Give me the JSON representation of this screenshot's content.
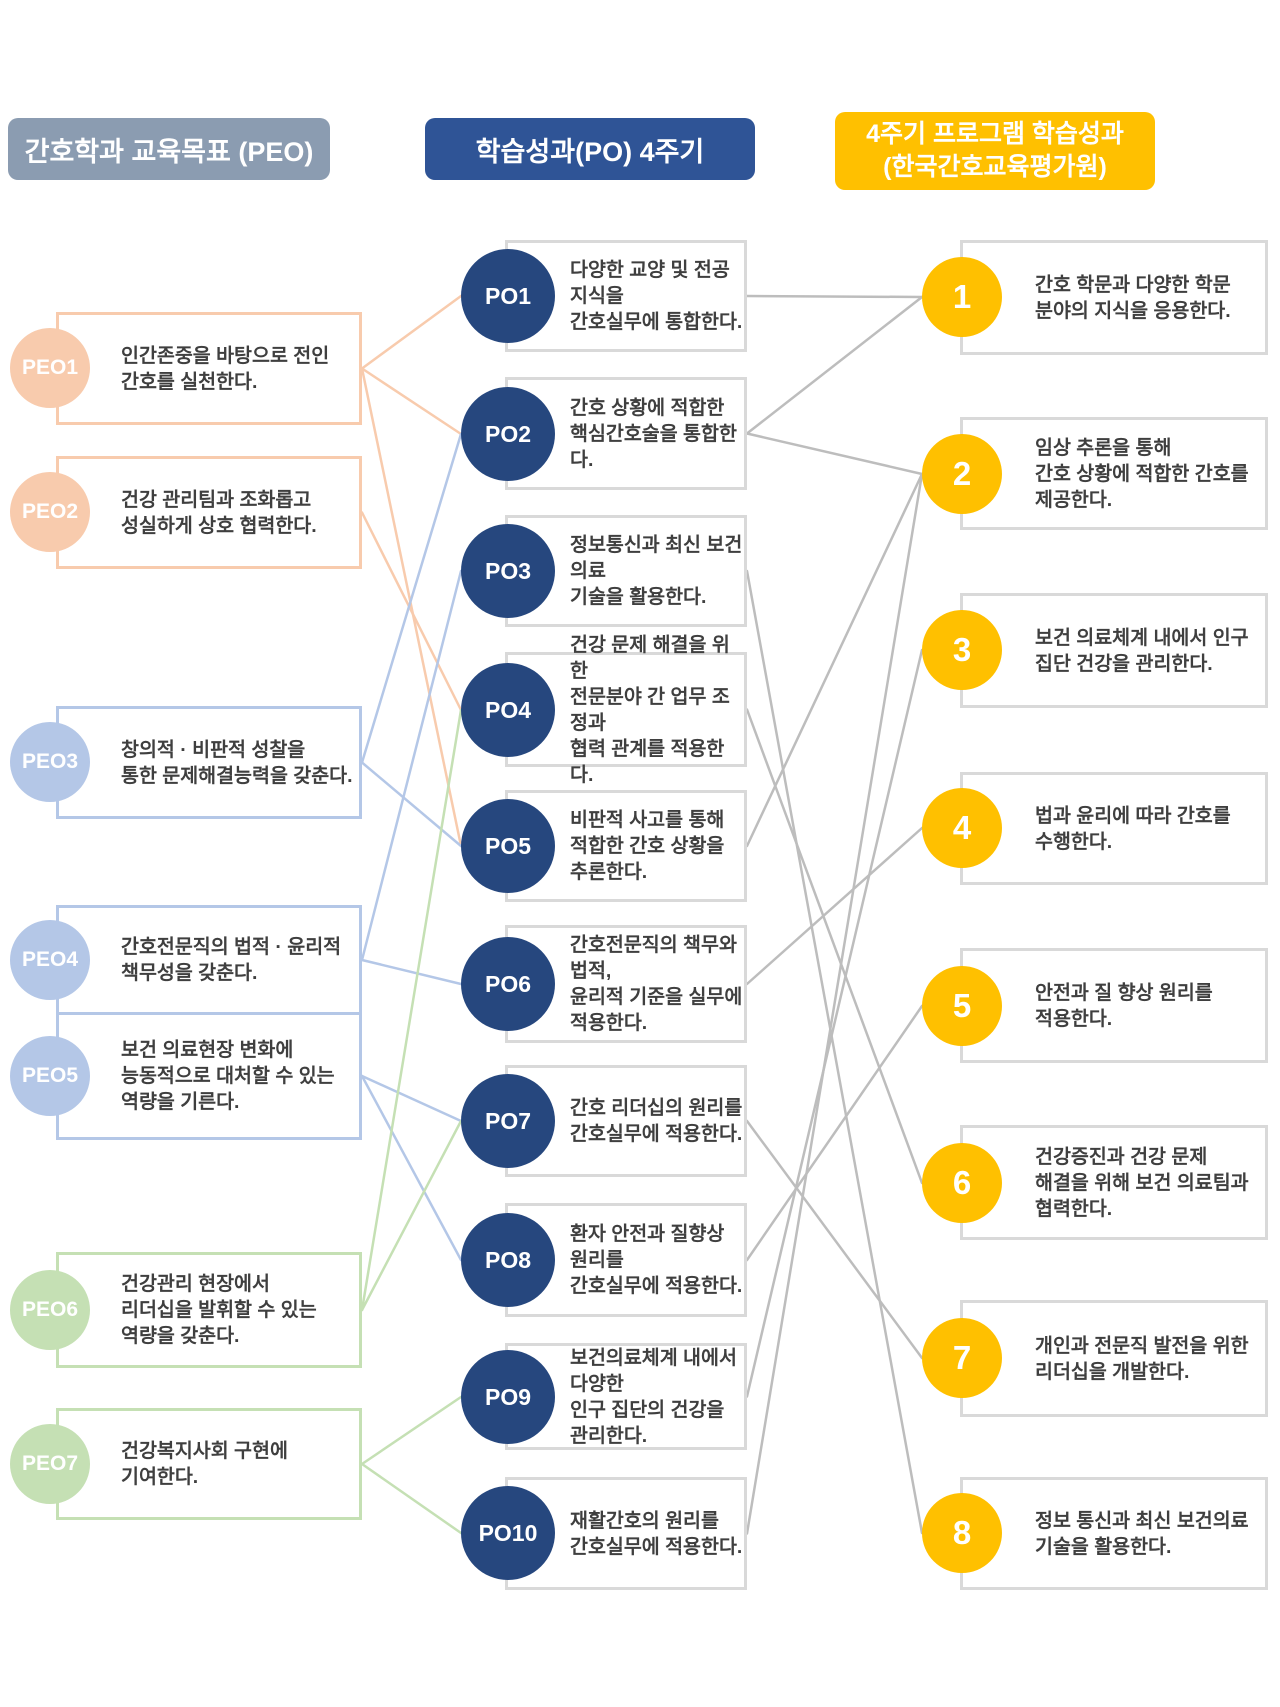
{
  "headers": {
    "peo": "간호학과 교육목표 (PEO)",
    "po": "학습성과(PO) 4주기",
    "outcome": "4주기 프로그램 학습성과\n(한국간호교육평가원)"
  },
  "peo": {
    "items": [
      {
        "id": "peo1",
        "label": "PEO1",
        "text": "인간존중을 바탕으로 전인\n간호를 실천한다."
      },
      {
        "id": "peo2",
        "label": "PEO2",
        "text": "건강 관리팀과 조화롭고\n성실하게 상호 협력한다."
      },
      {
        "id": "peo3",
        "label": "PEO3",
        "text": "창의적 · 비판적 성찰을\n통한 문제해결능력을 갖춘다."
      },
      {
        "id": "peo4",
        "label": "PEO4",
        "text": "간호전문직의 법적 · 윤리적\n책무성을 갖춘다."
      },
      {
        "id": "peo5",
        "label": "PEO5",
        "text": "보건 의료현장 변화에\n능동적으로 대처할 수 있는\n역량을 기른다."
      },
      {
        "id": "peo6",
        "label": "PEO6",
        "text": "건강관리 현장에서\n리더십을 발휘할 수 있는\n역량을 갖춘다."
      },
      {
        "id": "peo7",
        "label": "PEO7",
        "text": "건강복지사회 구현에\n기여한다."
      }
    ]
  },
  "po": {
    "items": [
      {
        "id": "po1",
        "label": "PO1",
        "text": "다양한 교양 및 전공 지식을\n간호실무에 통합한다."
      },
      {
        "id": "po2",
        "label": "PO2",
        "text": "간호 상황에 적합한\n핵심간호술을 통합한다."
      },
      {
        "id": "po3",
        "label": "PO3",
        "text": "정보통신과 최신 보건의료\n기술을 활용한다."
      },
      {
        "id": "po4",
        "label": "PO4",
        "text": "건강 문제 해결을 위한\n전문분야 간 업무 조정과\n협력 관계를 적용한다."
      },
      {
        "id": "po5",
        "label": "PO5",
        "text": "비판적 사고를 통해\n적합한 간호 상황을\n추론한다."
      },
      {
        "id": "po6",
        "label": "PO6",
        "text": "간호전문직의 책무와 법적,\n윤리적 기준을 실무에\n적용한다."
      },
      {
        "id": "po7",
        "label": "PO7",
        "text": "간호 리더십의 원리를\n간호실무에 적용한다."
      },
      {
        "id": "po8",
        "label": "PO8",
        "text": "환자 안전과 질향상 원리를\n간호실무에 적용한다."
      },
      {
        "id": "po9",
        "label": "PO9",
        "text": "보건의료체계 내에서 다양한\n인구 집단의 건강을\n관리한다."
      },
      {
        "id": "po10",
        "label": "PO10",
        "text": "재활간호의 원리를\n간호실무에 적용한다."
      }
    ]
  },
  "outcomes": {
    "items": [
      {
        "id": "out1",
        "label": "1",
        "text": "간호 학문과 다양한 학문\n분야의 지식을 응용한다."
      },
      {
        "id": "out2",
        "label": "2",
        "text": "임상 추론을 통해\n간호 상황에 적합한 간호를\n제공한다."
      },
      {
        "id": "out3",
        "label": "3",
        "text": "보건 의료체계 내에서 인구\n집단 건강을 관리한다."
      },
      {
        "id": "out4",
        "label": "4",
        "text": "법과 윤리에 따라 간호를\n수행한다."
      },
      {
        "id": "out5",
        "label": "5",
        "text": "안전과 질 향상 원리를\n적용한다."
      },
      {
        "id": "out6",
        "label": "6",
        "text": "건강증진과 건강 문제\n해결을 위해 보건 의료팀과\n협력한다."
      },
      {
        "id": "out7",
        "label": "7",
        "text": "개인과 전문직 발전을 위한\n리더십을 개발한다."
      },
      {
        "id": "out8",
        "label": "8",
        "text": "정보 통신과 최신 보건의료\n기술을 활용한다."
      }
    ]
  },
  "connections": {
    "peo_to_po": [
      {
        "from": "peo1",
        "to": "po1",
        "group": "peach"
      },
      {
        "from": "peo1",
        "to": "po2",
        "group": "peach"
      },
      {
        "from": "peo1",
        "to": "po5",
        "group": "peach"
      },
      {
        "from": "peo2",
        "to": "po4",
        "group": "peach"
      },
      {
        "from": "peo3",
        "to": "po2",
        "group": "blue"
      },
      {
        "from": "peo3",
        "to": "po5",
        "group": "blue"
      },
      {
        "from": "peo4",
        "to": "po3",
        "group": "blue"
      },
      {
        "from": "peo4",
        "to": "po6",
        "group": "blue"
      },
      {
        "from": "peo5",
        "to": "po7",
        "group": "blue"
      },
      {
        "from": "peo5",
        "to": "po8",
        "group": "blue"
      },
      {
        "from": "peo6",
        "to": "po4",
        "group": "green"
      },
      {
        "from": "peo6",
        "to": "po7",
        "group": "green"
      },
      {
        "from": "peo7",
        "to": "po9",
        "group": "green"
      },
      {
        "from": "peo7",
        "to": "po10",
        "group": "green"
      }
    ],
    "po_to_outcome": [
      {
        "from": "po1",
        "to": "out1",
        "group": "gray"
      },
      {
        "from": "po2",
        "to": "out1",
        "group": "gray"
      },
      {
        "from": "po2",
        "to": "out2",
        "group": "gray"
      },
      {
        "from": "po5",
        "to": "out2",
        "group": "gray"
      },
      {
        "from": "po10",
        "to": "out2",
        "group": "gray"
      },
      {
        "from": "po9",
        "to": "out3",
        "group": "gray"
      },
      {
        "from": "po6",
        "to": "out4",
        "group": "gray"
      },
      {
        "from": "po8",
        "to": "out5",
        "group": "gray"
      },
      {
        "from": "po4",
        "to": "out6",
        "group": "gray"
      },
      {
        "from": "po7",
        "to": "out7",
        "group": "gray"
      },
      {
        "from": "po3",
        "to": "out8",
        "group": "gray"
      }
    ]
  },
  "colors": {
    "peach": "#f8cbad",
    "blue": "#b4c7e7",
    "green": "#c5e0b4",
    "gray": "#bdbdbd",
    "po_circle": "#26477e",
    "outcome_accent": "#ffc000",
    "peo_header": "#8b9cb1",
    "po_header": "#2f5496"
  }
}
